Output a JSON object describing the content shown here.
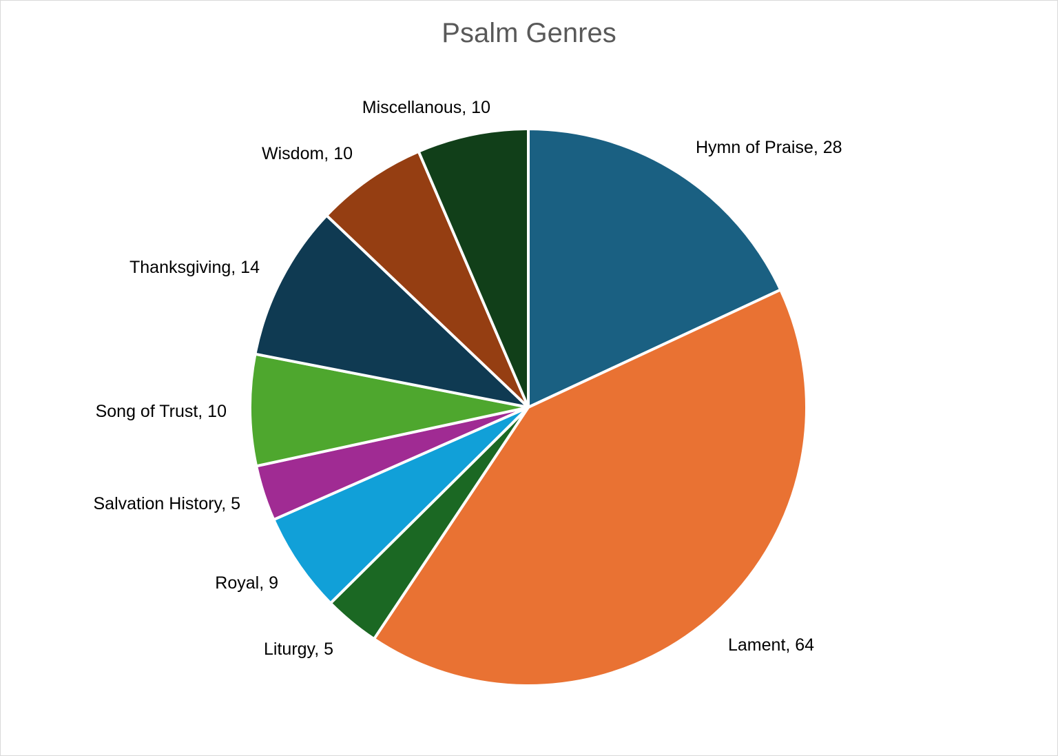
{
  "chart_data": {
    "type": "pie",
    "title": "Psalm Genres",
    "categories": [
      "Hymn of Praise",
      "Lament",
      "Liturgy",
      "Royal",
      "Salvation History",
      "Song of Trust",
      "Thanksgiving",
      "Wisdom",
      "Miscellanous"
    ],
    "values": [
      28,
      64,
      5,
      9,
      5,
      10,
      14,
      10,
      10
    ],
    "labels": [
      "Hymn of Praise, 28",
      "Lament, 64",
      "Liturgy, 5",
      "Royal, 9",
      "Salvation History, 5",
      "Song of Trust, 10",
      "Thanksgiving, 14",
      "Wisdom, 10",
      "Miscellanous, 10"
    ],
    "colors": [
      "#1a6082",
      "#e97233",
      "#1b6823",
      "#11a0d8",
      "#a02b93",
      "#4ea72e",
      "#0f3a52",
      "#953e12",
      "#113f19"
    ],
    "start_angle": "12 o'clock",
    "direction": "clockwise",
    "legend": "none"
  }
}
